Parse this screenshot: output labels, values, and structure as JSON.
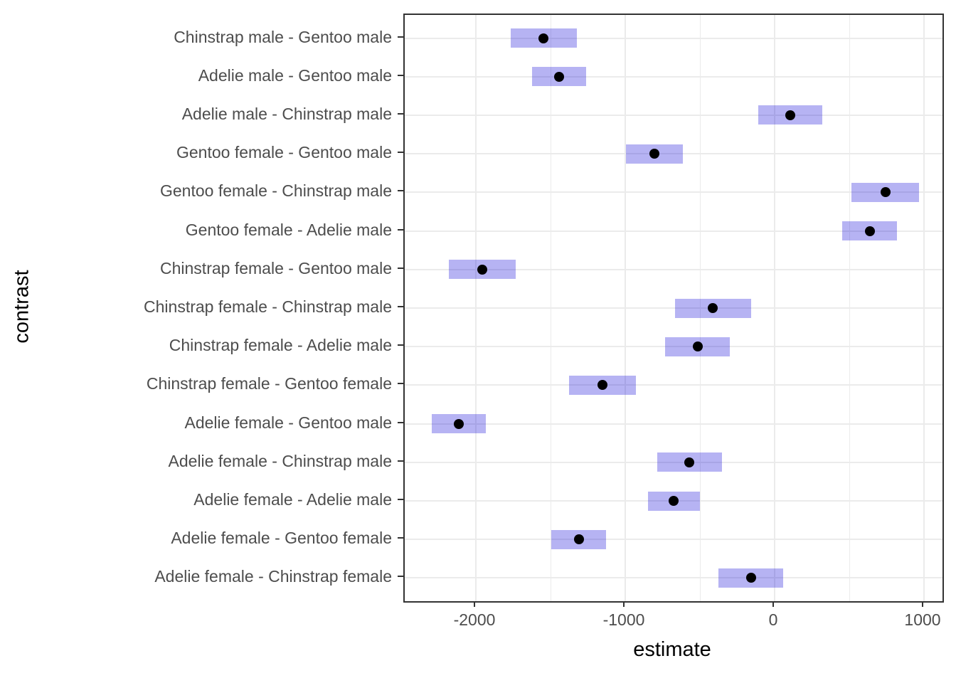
{
  "chart_data": {
    "type": "pointrange",
    "orientation": "horizontal",
    "title": "",
    "xlabel": "estimate",
    "ylabel": "contrast",
    "xlim": [
      -2476.2,
      1123.8
    ],
    "x_major_ticks": [
      -2000,
      -1000,
      0,
      1000
    ],
    "x_tick_labels": [
      "-2000",
      "-1000",
      "0",
      "1000"
    ],
    "x_minor_gridlines": [
      -1500,
      -500,
      500
    ],
    "grid": true,
    "legend": "none",
    "categories": [
      "Chinstrap male - Gentoo male",
      "Adelie male - Gentoo male",
      "Adelie male - Chinstrap male",
      "Gentoo female - Gentoo male",
      "Gentoo female - Chinstrap male",
      "Gentoo female - Adelie male",
      "Chinstrap female - Gentoo male",
      "Chinstrap female - Chinstrap male",
      "Chinstrap female - Adelie male",
      "Chinstrap female - Gentoo female",
      "Adelie female - Gentoo male",
      "Adelie female - Chinstrap male",
      "Adelie female - Adelie male",
      "Adelie female - Gentoo female",
      "Adelie female - Chinstrap female"
    ],
    "points": [
      {
        "category": "Chinstrap male - Gentoo male",
        "estimate": -1546,
        "lower": -1769,
        "upper": -1323
      },
      {
        "category": "Adelie male - Gentoo male",
        "estimate": -1441,
        "lower": -1622,
        "upper": -1260
      },
      {
        "category": "Adelie male - Chinstrap male",
        "estimate": 105,
        "lower": -111,
        "upper": 321
      },
      {
        "category": "Gentoo female - Gentoo male",
        "estimate": -805,
        "lower": -996,
        "upper": -614
      },
      {
        "category": "Gentoo female - Chinstrap male",
        "estimate": 741,
        "lower": 516,
        "upper": 966
      },
      {
        "category": "Gentoo female - Adelie male",
        "estimate": 636,
        "lower": 453,
        "upper": 819
      },
      {
        "category": "Chinstrap female - Gentoo male",
        "estimate": -1958,
        "lower": -2181,
        "upper": -1735
      },
      {
        "category": "Chinstrap female - Chinstrap male",
        "estimate": -412,
        "lower": -665,
        "upper": -159
      },
      {
        "category": "Chinstrap female - Adelie male",
        "estimate": -516,
        "lower": -732,
        "upper": -300
      },
      {
        "category": "Chinstrap female - Gentoo female",
        "estimate": -1153,
        "lower": -1378,
        "upper": -928
      },
      {
        "category": "Adelie female - Gentoo male",
        "estimate": -2116,
        "lower": -2297,
        "upper": -1935
      },
      {
        "category": "Adelie female - Chinstrap male",
        "estimate": -570,
        "lower": -786,
        "upper": -354
      },
      {
        "category": "Adelie female - Adelie male",
        "estimate": -675,
        "lower": -848,
        "upper": -502
      },
      {
        "category": "Adelie female - Gentoo female",
        "estimate": -1311,
        "lower": -1494,
        "upper": -1128
      },
      {
        "category": "Adelie female - Chinstrap female",
        "estimate": -158,
        "lower": -374,
        "upper": 58
      }
    ]
  },
  "style": {
    "interval_fill_rgba": "rgba(13,2,215,0.30)",
    "interval_fill_hex": "#B6B3F3",
    "point_color": "#000000",
    "gridline_color": "#EBEBEB",
    "panel_border_color": "#333333",
    "tick_color": "#333333",
    "axis_text_color": "#4D4D4D",
    "axis_title_color": "#000000",
    "background_color": "#FFFFFF"
  }
}
